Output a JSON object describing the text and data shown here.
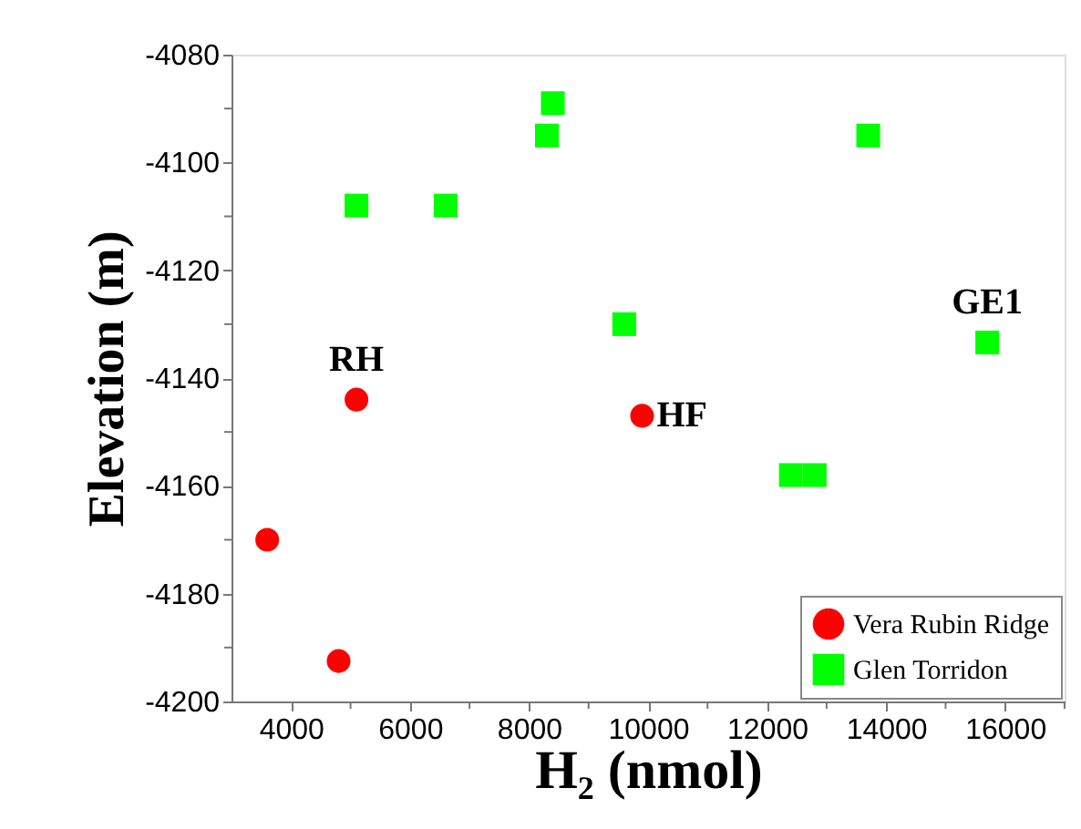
{
  "chart_data": {
    "type": "scatter",
    "xlabel": "H₂ (nmol)",
    "ylabel": "Elevation (m)",
    "xlim": [
      3000,
      17000
    ],
    "ylim": [
      -4200,
      -4080
    ],
    "xticks": [
      4000,
      {
        "value": 5000,
        "label": null
      },
      6000,
      {
        "value": 7000,
        "label": null
      },
      8000,
      {
        "value": 9000,
        "label": null
      },
      10000,
      {
        "value": 11000,
        "label": null
      },
      12000,
      {
        "value": 13000,
        "label": null
      },
      14000,
      {
        "value": 15000,
        "label": null
      },
      16000,
      {
        "value": 17000,
        "label": null
      }
    ],
    "yticks": [
      -4200,
      {
        "value": -4190,
        "label": null
      },
      -4180,
      {
        "value": -4170,
        "label": null
      },
      -4160,
      {
        "value": -4150,
        "label": null
      },
      -4140,
      {
        "value": -4130,
        "label": null
      },
      -4120,
      {
        "value": -4110,
        "label": null
      },
      -4100,
      {
        "value": -4090,
        "label": null
      },
      -4080
    ],
    "grid": false,
    "legend": "bottom right",
    "series": [
      {
        "name": "Vera Rubin Ridge",
        "color": "#ff0000",
        "marker": "circle",
        "x": [
          3600,
          4800,
          5100,
          9900
        ],
        "values": [
          -4170,
          -4192.5,
          -4144,
          -4147
        ]
      },
      {
        "name": "Glen Torridon",
        "color": "#00ff00",
        "marker": "square",
        "x": [
          5100,
          6600,
          8300,
          8400,
          9600,
          12400,
          12800,
          13700,
          15700
        ],
        "values": [
          -4108,
          -4108,
          -4095,
          -4089,
          -4130,
          -4158,
          -4158,
          -4095,
          -4133.4
        ]
      }
    ],
    "annotations": [
      {
        "text": "RH",
        "x": 5100,
        "y": -4144
      },
      {
        "text": "HF",
        "x": 9900,
        "y": -4147
      },
      {
        "text": "GE1",
        "x": 15700,
        "y": -4133.4
      }
    ]
  }
}
